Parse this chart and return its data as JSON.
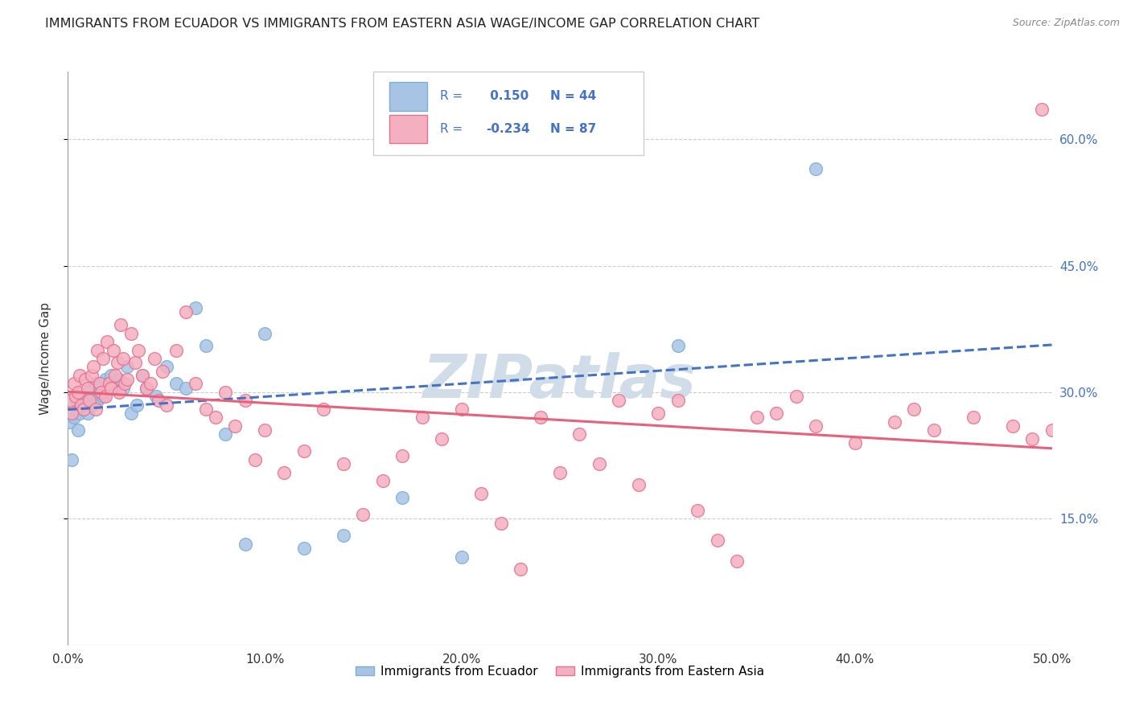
{
  "title": "IMMIGRANTS FROM ECUADOR VS IMMIGRANTS FROM EASTERN ASIA WAGE/INCOME GAP CORRELATION CHART",
  "source": "Source: ZipAtlas.com",
  "ylabel": "Wage/Income Gap",
  "y_ticks": [
    0.15,
    0.3,
    0.45,
    0.6
  ],
  "y_tick_labels": [
    "15.0%",
    "30.0%",
    "45.0%",
    "60.0%"
  ],
  "legend_label_blue": "Immigrants from Ecuador",
  "legend_label_pink": "Immigrants from Eastern Asia",
  "r_blue": "0.150",
  "n_blue": "44",
  "r_pink": "-0.234",
  "n_pink": "87",
  "blue_fill": "#a8c4e5",
  "pink_fill": "#f4b0c0",
  "blue_edge": "#7bafd4",
  "pink_edge": "#e87090",
  "blue_line": "#4472c4",
  "pink_line": "#e8607a",
  "ecuador_x": [
    0.001,
    0.002,
    0.003,
    0.004,
    0.005,
    0.006,
    0.007,
    0.008,
    0.009,
    0.01,
    0.011,
    0.012,
    0.013,
    0.014,
    0.015,
    0.016,
    0.017,
    0.018,
    0.019,
    0.02,
    0.022,
    0.024,
    0.026,
    0.028,
    0.03,
    0.032,
    0.035,
    0.038,
    0.04,
    0.045,
    0.05,
    0.055,
    0.06,
    0.065,
    0.07,
    0.08,
    0.09,
    0.1,
    0.12,
    0.14,
    0.17,
    0.2,
    0.31,
    0.38
  ],
  "ecuador_y": [
    0.265,
    0.22,
    0.27,
    0.29,
    0.255,
    0.275,
    0.285,
    0.28,
    0.295,
    0.275,
    0.3,
    0.285,
    0.295,
    0.31,
    0.29,
    0.305,
    0.31,
    0.295,
    0.315,
    0.305,
    0.32,
    0.31,
    0.315,
    0.305,
    0.33,
    0.275,
    0.285,
    0.32,
    0.305,
    0.295,
    0.33,
    0.31,
    0.305,
    0.4,
    0.355,
    0.25,
    0.12,
    0.37,
    0.115,
    0.13,
    0.175,
    0.105,
    0.355,
    0.565
  ],
  "eastern_asia_x": [
    0.001,
    0.002,
    0.003,
    0.004,
    0.005,
    0.006,
    0.007,
    0.008,
    0.009,
    0.01,
    0.011,
    0.012,
    0.013,
    0.014,
    0.015,
    0.016,
    0.017,
    0.018,
    0.019,
    0.02,
    0.021,
    0.022,
    0.023,
    0.024,
    0.025,
    0.026,
    0.027,
    0.028,
    0.029,
    0.03,
    0.032,
    0.034,
    0.036,
    0.038,
    0.04,
    0.042,
    0.044,
    0.046,
    0.048,
    0.05,
    0.055,
    0.06,
    0.065,
    0.07,
    0.075,
    0.08,
    0.085,
    0.09,
    0.095,
    0.1,
    0.11,
    0.12,
    0.13,
    0.14,
    0.15,
    0.16,
    0.17,
    0.18,
    0.19,
    0.2,
    0.21,
    0.22,
    0.23,
    0.24,
    0.25,
    0.26,
    0.27,
    0.28,
    0.29,
    0.3,
    0.31,
    0.32,
    0.33,
    0.34,
    0.36,
    0.38,
    0.4,
    0.42,
    0.44,
    0.46,
    0.48,
    0.49,
    0.495,
    0.5,
    0.43,
    0.37,
    0.35
  ],
  "eastern_asia_y": [
    0.29,
    0.275,
    0.31,
    0.295,
    0.3,
    0.32,
    0.285,
    0.28,
    0.315,
    0.305,
    0.29,
    0.32,
    0.33,
    0.28,
    0.35,
    0.31,
    0.3,
    0.34,
    0.295,
    0.36,
    0.31,
    0.305,
    0.35,
    0.32,
    0.335,
    0.3,
    0.38,
    0.34,
    0.31,
    0.315,
    0.37,
    0.335,
    0.35,
    0.32,
    0.305,
    0.31,
    0.34,
    0.29,
    0.325,
    0.285,
    0.35,
    0.395,
    0.31,
    0.28,
    0.27,
    0.3,
    0.26,
    0.29,
    0.22,
    0.255,
    0.205,
    0.23,
    0.28,
    0.215,
    0.155,
    0.195,
    0.225,
    0.27,
    0.245,
    0.28,
    0.18,
    0.145,
    0.09,
    0.27,
    0.205,
    0.25,
    0.215,
    0.29,
    0.19,
    0.275,
    0.29,
    0.16,
    0.125,
    0.1,
    0.275,
    0.26,
    0.24,
    0.265,
    0.255,
    0.27,
    0.26,
    0.245,
    0.635,
    0.255,
    0.28,
    0.295,
    0.27
  ],
  "xlim": [
    0.0,
    0.5
  ],
  "ylim": [
    0.0,
    0.68
  ],
  "x_ticks": [
    0.0,
    0.1,
    0.2,
    0.3,
    0.4,
    0.5
  ],
  "background_color": "#ffffff",
  "grid_color": "#cccccc",
  "watermark_text": "ZIPatlas",
  "watermark_color": "#d0dce8",
  "title_color": "#222222",
  "source_color": "#888888",
  "label_color": "#4472c4"
}
